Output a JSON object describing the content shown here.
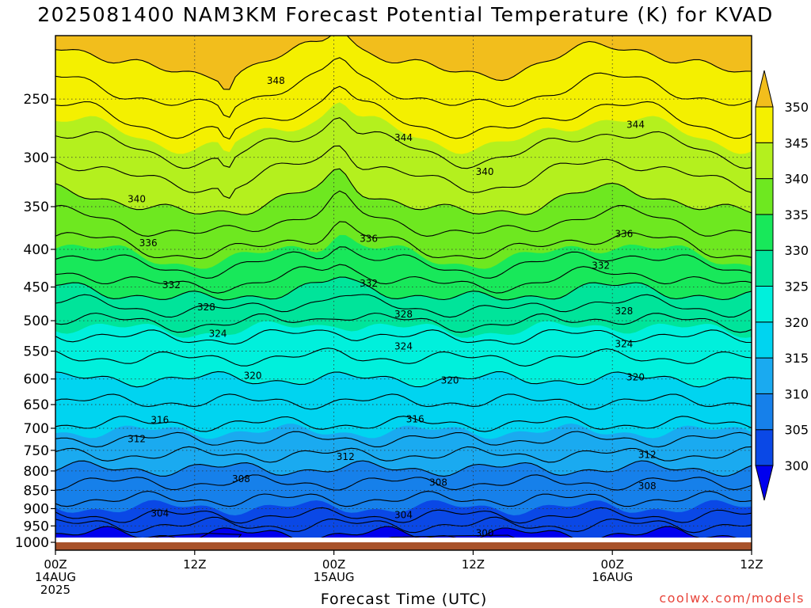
{
  "title": "2025081400 NAM3KM Forecast Potential Temperature (K) for KVAD",
  "credit": "coolwx.com/models",
  "chart_data": {
    "type": "heatmap",
    "title": "2025081400 NAM3KM Forecast Potential Temperature (K) for KVAD",
    "xlabel": "Forecast Time (UTC)",
    "ylabel": "",
    "y_scale": "log",
    "y_inverted": true,
    "y_range": [
      1025,
      205
    ],
    "x_range": [
      0,
      60
    ],
    "grid": "dotted",
    "y_ticks": [
      250,
      300,
      350,
      400,
      450,
      500,
      550,
      600,
      650,
      700,
      750,
      800,
      850,
      900,
      950,
      1000
    ],
    "x_ticks": [
      {
        "hour": 0,
        "lines": [
          "00Z",
          "14AUG",
          "2025"
        ]
      },
      {
        "hour": 12,
        "lines": [
          "12Z"
        ]
      },
      {
        "hour": 24,
        "lines": [
          "00Z",
          "15AUG"
        ]
      },
      {
        "hour": 36,
        "lines": [
          "12Z"
        ]
      },
      {
        "hour": 48,
        "lines": [
          "00Z",
          "16AUG"
        ]
      },
      {
        "hour": 60,
        "lines": [
          "12Z"
        ]
      }
    ],
    "colorbar": {
      "levels": [
        300,
        305,
        310,
        315,
        320,
        325,
        330,
        335,
        340,
        345,
        350
      ],
      "colors": [
        "#0000ee",
        "#0a48e6",
        "#1680ea",
        "#1aaaf0",
        "#00d4f0",
        "#00f0dc",
        "#00e49a",
        "#18e85a",
        "#6ee820",
        "#b4f01e",
        "#f4f000",
        "#f2be1c"
      ]
    },
    "surface_pressure": 1000,
    "isentropes_K": [
      300,
      302,
      304,
      306,
      308,
      310,
      312,
      314,
      316,
      318,
      320,
      322,
      324,
      326,
      328,
      330,
      332,
      334,
      336,
      338,
      340,
      342,
      344,
      346,
      348,
      350
    ],
    "contour_labels": [
      {
        "value": "348",
        "hour": 19,
        "p": 236
      },
      {
        "value": "344",
        "hour": 30,
        "p": 282
      },
      {
        "value": "344",
        "hour": 50,
        "p": 271
      },
      {
        "value": "340",
        "hour": 7,
        "p": 342
      },
      {
        "value": "340",
        "hour": 37,
        "p": 314
      },
      {
        "value": "336",
        "hour": 8,
        "p": 392
      },
      {
        "value": "336",
        "hour": 27,
        "p": 387
      },
      {
        "value": "336",
        "hour": 49,
        "p": 381
      },
      {
        "value": "332",
        "hour": 10,
        "p": 447
      },
      {
        "value": "332",
        "hour": 27,
        "p": 445
      },
      {
        "value": "332",
        "hour": 47,
        "p": 421
      },
      {
        "value": "328",
        "hour": 13,
        "p": 479
      },
      {
        "value": "328",
        "hour": 30,
        "p": 490
      },
      {
        "value": "328",
        "hour": 49,
        "p": 485
      },
      {
        "value": "324",
        "hour": 14,
        "p": 521
      },
      {
        "value": "324",
        "hour": 30,
        "p": 542
      },
      {
        "value": "324",
        "hour": 49,
        "p": 538
      },
      {
        "value": "320",
        "hour": 17,
        "p": 594
      },
      {
        "value": "320",
        "hour": 34,
        "p": 603
      },
      {
        "value": "320",
        "hour": 50,
        "p": 597
      },
      {
        "value": "316",
        "hour": 9,
        "p": 682
      },
      {
        "value": "316",
        "hour": 31,
        "p": 680
      },
      {
        "value": "312",
        "hour": 7,
        "p": 724
      },
      {
        "value": "312",
        "hour": 25,
        "p": 765
      },
      {
        "value": "312",
        "hour": 51,
        "p": 761
      },
      {
        "value": "308",
        "hour": 16,
        "p": 820
      },
      {
        "value": "308",
        "hour": 33,
        "p": 829
      },
      {
        "value": "308",
        "hour": 51,
        "p": 839
      },
      {
        "value": "304",
        "hour": 9,
        "p": 914
      },
      {
        "value": "304",
        "hour": 30,
        "p": 918
      },
      {
        "value": "300",
        "hour": 37,
        "p": 972
      }
    ]
  }
}
